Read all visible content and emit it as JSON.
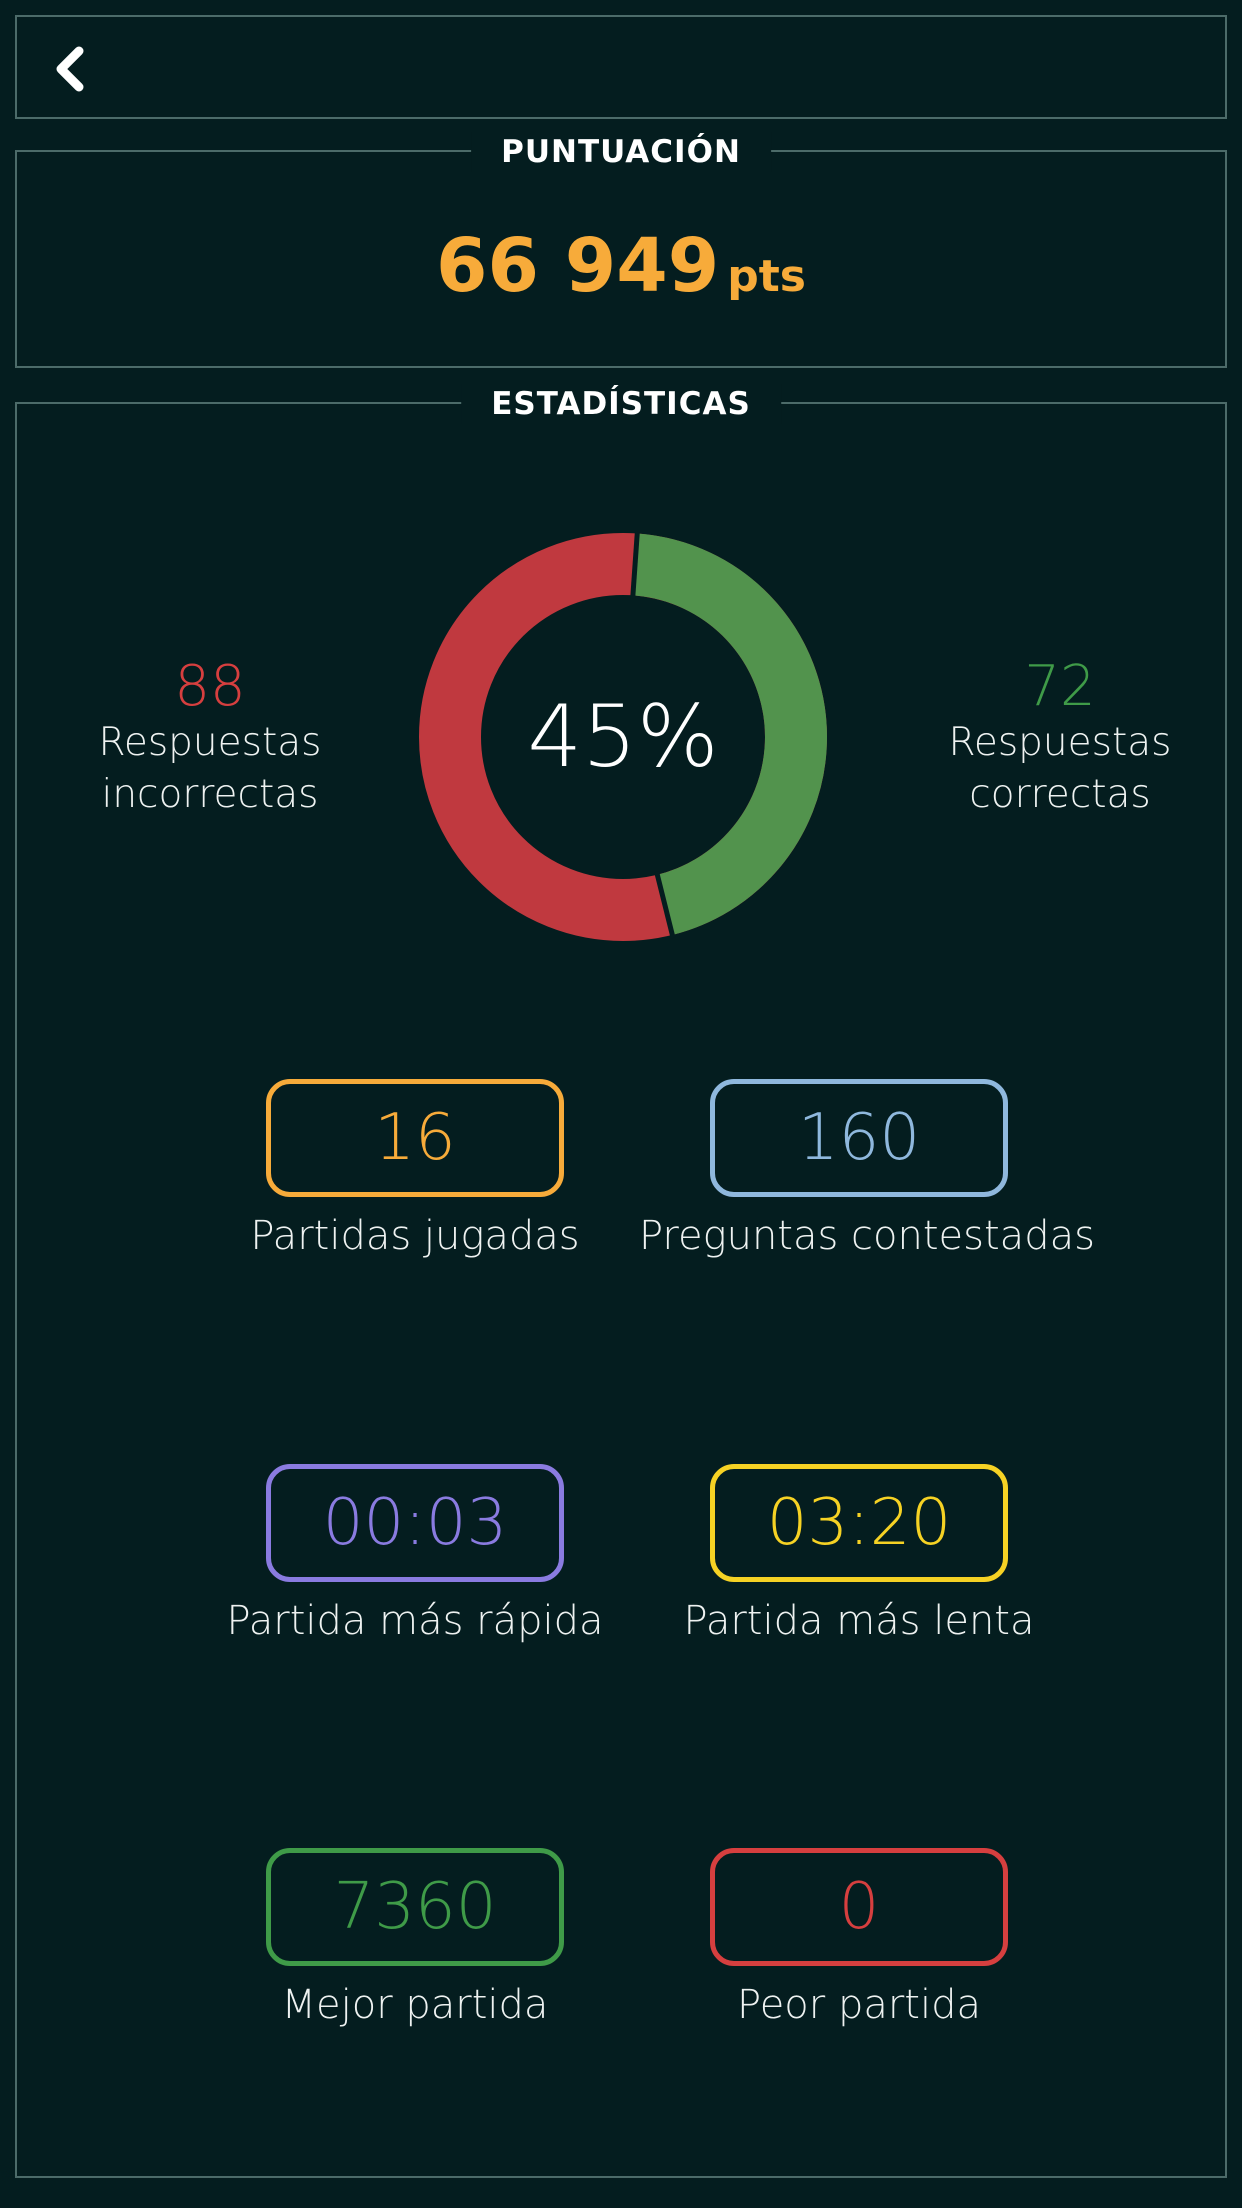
{
  "header": {
    "back_icon": "chevron-left-icon"
  },
  "score": {
    "title": "PUNTUACIÓN",
    "value": "66 949",
    "unit": "pts"
  },
  "stats": {
    "title": "ESTADÍSTICAS",
    "percentage_label": "45%",
    "correct_fraction": 0.45,
    "incorrect": {
      "value": "88",
      "label_line1": "Respuestas",
      "label_line2": "incorrectas"
    },
    "correct": {
      "value": "72",
      "label_line1": "Respuestas",
      "label_line2": "correctas"
    },
    "colors": {
      "incorrect": "#c0393f",
      "correct": "#52934d",
      "score": "#f7ab3a"
    },
    "cards": [
      {
        "value": "16",
        "label": "Partidas jugadas"
      },
      {
        "value": "160",
        "label": "Preguntas contestadas"
      },
      {
        "value": "00:03",
        "label": "Partida más rápida"
      },
      {
        "value": "03:20",
        "label": "Partida más lenta"
      },
      {
        "value": "7360",
        "label": "Mejor partida"
      },
      {
        "value": "0",
        "label": "Peor partida"
      }
    ]
  }
}
